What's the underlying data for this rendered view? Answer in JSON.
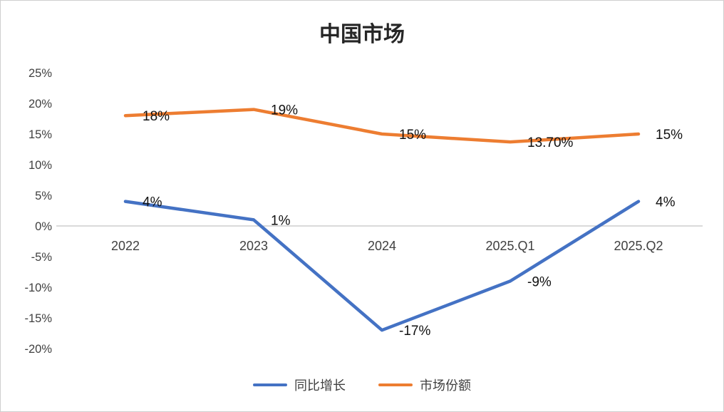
{
  "page": {
    "title": "中国市场"
  },
  "chart_data": {
    "type": "line",
    "title": "中国市场",
    "categories": [
      "2022",
      "2023",
      "2024",
      "2025.Q1",
      "2025.Q2"
    ],
    "series": [
      {
        "name": "同比增长",
        "color": "#4472C4",
        "values": [
          4,
          1,
          -17,
          -9,
          4
        ],
        "labels": [
          "4%",
          "1%",
          "-17%",
          "-9%",
          "4%"
        ]
      },
      {
        "name": "市场份额",
        "color": "#ED7D31",
        "values": [
          18,
          19,
          15,
          13.7,
          15
        ],
        "labels": [
          "18%",
          "19%",
          "15%",
          "13.70%",
          "15%"
        ]
      }
    ],
    "ylim": [
      -20,
      25
    ],
    "ytick_step": 5,
    "ytick_suffix": "%",
    "grid": false,
    "axis_line_color": "#c3c3c3",
    "legend_position": "bottom"
  }
}
